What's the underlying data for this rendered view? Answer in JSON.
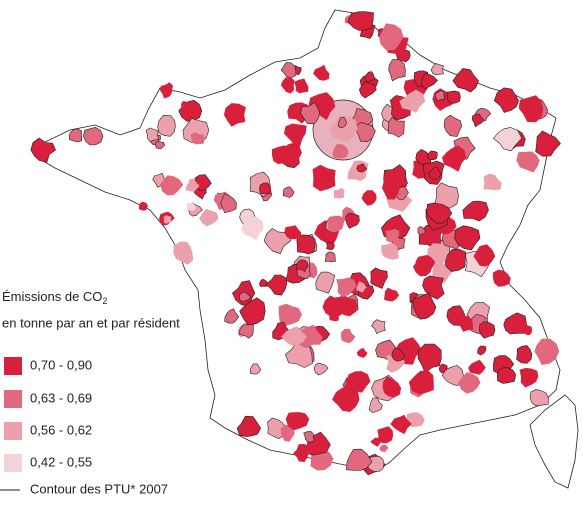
{
  "legend": {
    "title_line1": "Émissions de CO",
    "title_subscript": "2",
    "title_line2": "en tonne par an et par résident",
    "classes": [
      {
        "label": "0,70  -  0,90",
        "color": "#d81f3c"
      },
      {
        "label": "0,63  -  0,69",
        "color": "#e2687d"
      },
      {
        "label": "0,56  -  0,62",
        "color": "#eba0ab"
      },
      {
        "label": "0,42  -  0,55",
        "color": "#f4d3d8"
      }
    ],
    "outline_label": "Contour des PTU* 2007"
  }
}
